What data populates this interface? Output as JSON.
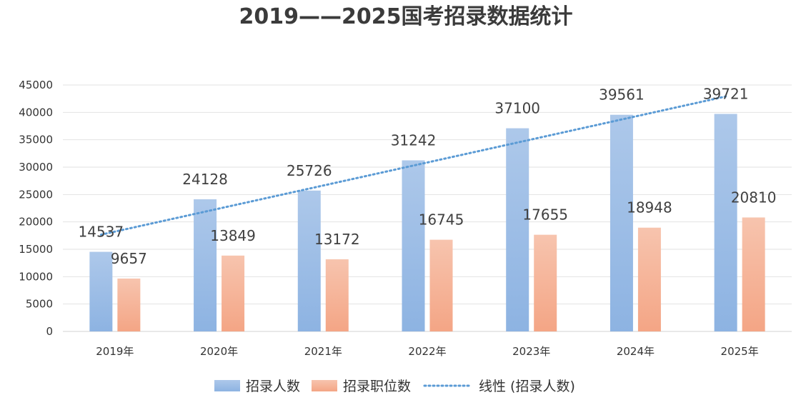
{
  "chart_data": {
    "type": "bar",
    "title": "2019——2025国考招录数据统计",
    "categories": [
      "2019年",
      "2020年",
      "2021年",
      "2022年",
      "2023年",
      "2024年",
      "2025年"
    ],
    "series": [
      {
        "name": "招录人数",
        "values": [
          14537,
          24128,
          25726,
          31242,
          37100,
          39561,
          39721
        ],
        "color_top": "#adc8ea",
        "color_bottom": "#8db3e2"
      },
      {
        "name": "招录职位数",
        "values": [
          9657,
          13849,
          13172,
          16745,
          17655,
          18948,
          20810
        ],
        "color_top": "#f7c4ae",
        "color_bottom": "#f4a585"
      }
    ],
    "trendline": {
      "name": "线性 (招录人数)",
      "type": "linear",
      "based_on": "招录人数",
      "color": "#5b9bd5"
    },
    "y_ticks": [
      "0",
      "5000",
      "10000",
      "15000",
      "20000",
      "25000",
      "30000",
      "35000",
      "40000",
      "45000"
    ],
    "ylim": [
      0,
      45000
    ],
    "xlabel": "",
    "ylabel": "",
    "grid": true,
    "legend_position": "bottom"
  }
}
